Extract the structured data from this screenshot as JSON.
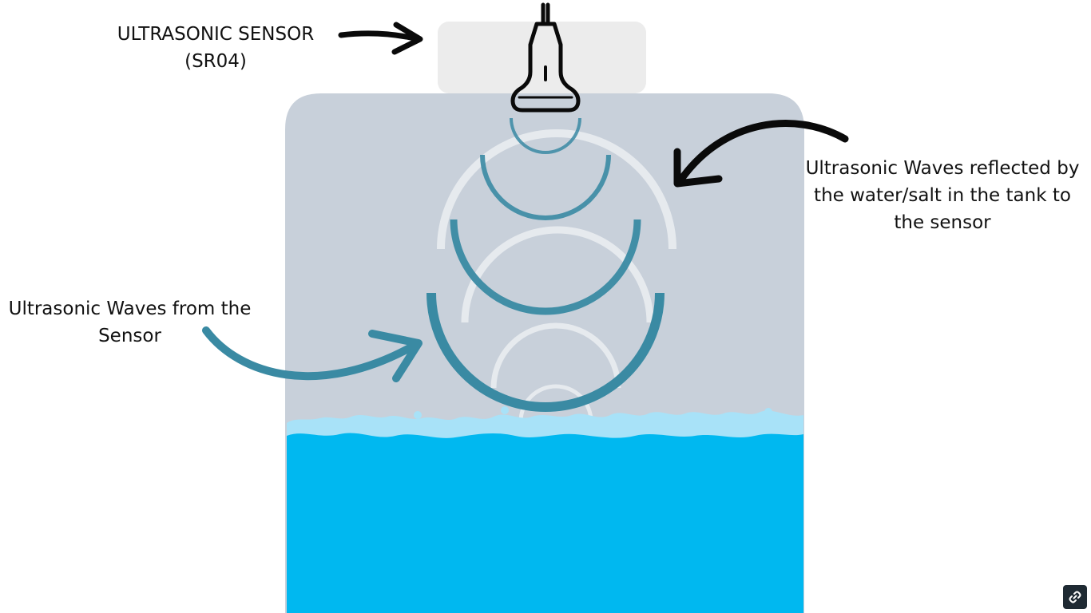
{
  "labels": {
    "sensor": {
      "line1": "ULTRASONIC SENSOR",
      "line2": "(SR04)"
    },
    "waves_from": {
      "line1": "Ultrasonic Waves from the",
      "line2": "Sensor"
    },
    "waves_reflected": {
      "line1": "Ultrasonic Waves reflected by",
      "line2": "the water/salt in the tank to",
      "line3": "the sensor"
    }
  },
  "icons": {
    "corner_button": "link-icon",
    "probe": "ultrasonic-probe-icon"
  },
  "colors": {
    "tank": "#c8d0da",
    "sensor_plate": "#ececec",
    "emitted_wave": "#3a8aa3",
    "reflected_wave": "#ffffff",
    "water": "#00b8f0",
    "water_surface": "#a8e2f8",
    "arrow_dark": "#0a0a0a",
    "arrow_teal": "#3a8aa3"
  }
}
